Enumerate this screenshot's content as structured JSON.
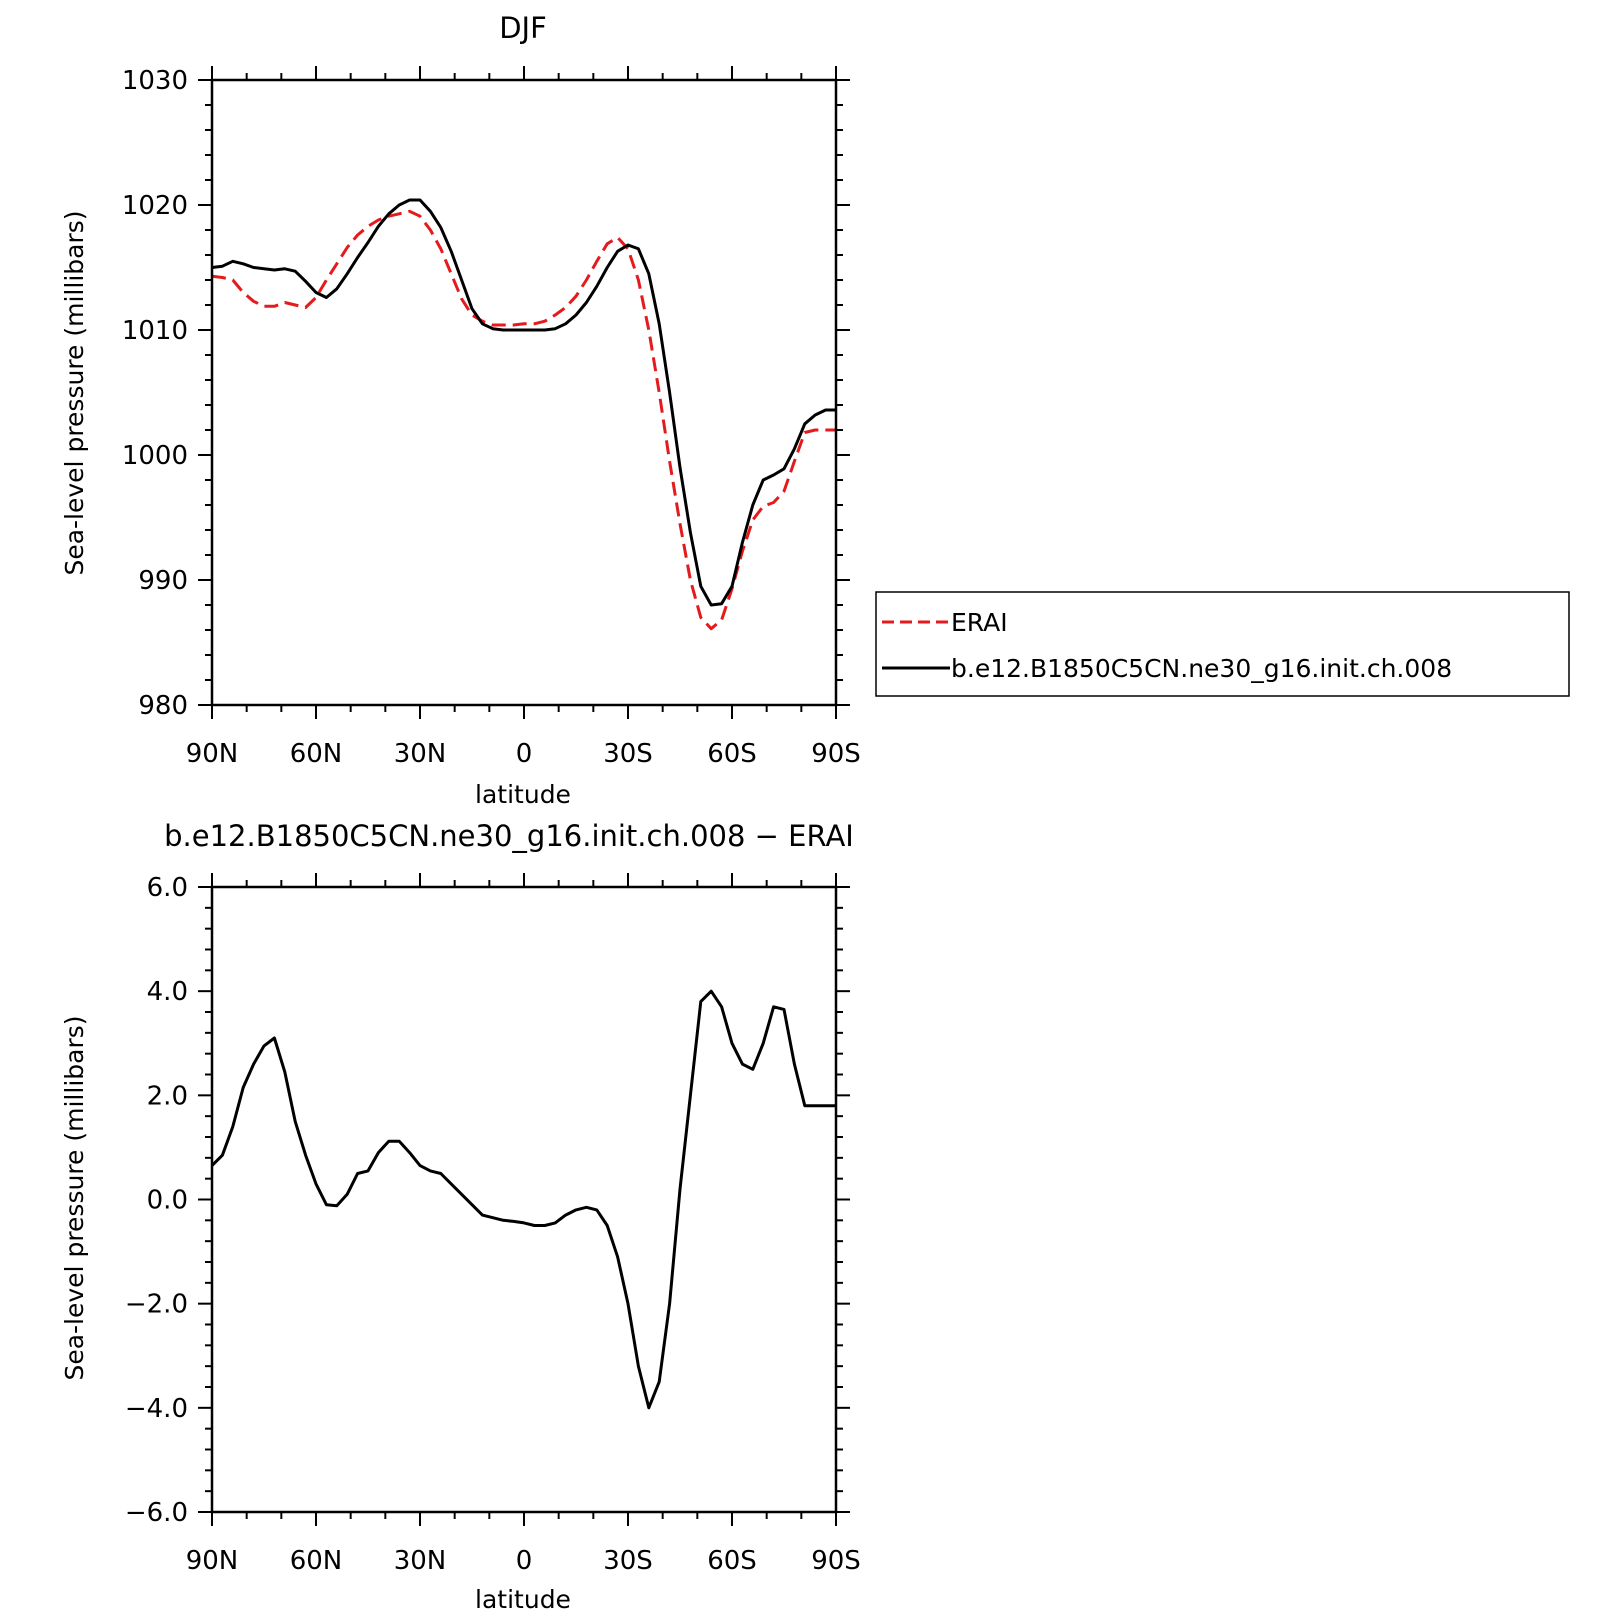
{
  "chart_data": [
    {
      "type": "line",
      "title": "DJF",
      "xlabel": "latitude",
      "ylabel": "Sea-level pressure (millibars)",
      "xlim": [
        90,
        -90
      ],
      "ylim": [
        980,
        1030
      ],
      "xticks": [
        90,
        60,
        30,
        0,
        -30,
        -60,
        -90
      ],
      "xtick_labels": [
        "90N",
        "60N",
        "30N",
        "0",
        "30S",
        "60S",
        "90S"
      ],
      "yticks": [
        980,
        990,
        1000,
        1010,
        1020,
        1030
      ],
      "ytick_labels": [
        "980",
        "990",
        "1000",
        "1010",
        "1020",
        "1030"
      ],
      "legend_position": "right",
      "series": [
        {
          "name": "ERAI",
          "color": "#e41a1c",
          "style": "dashed",
          "x": [
            90,
            87,
            84,
            81,
            78,
            75,
            72,
            69,
            66,
            63,
            60,
            57,
            54,
            51,
            48,
            45,
            42,
            39,
            36,
            33,
            30,
            27,
            24,
            21,
            18,
            15,
            12,
            9,
            6,
            3,
            0,
            -3,
            -6,
            -9,
            -12,
            -15,
            -18,
            -21,
            -24,
            -27,
            -30,
            -33,
            -36,
            -39,
            -42,
            -45,
            -48,
            -51,
            -54,
            -57,
            -60,
            -63,
            -66,
            -69,
            -72,
            -75,
            -78,
            -81,
            -84,
            -87,
            -90
          ],
          "y": [
            1014.3,
            1014.2,
            1014.0,
            1013.0,
            1012.3,
            1011.9,
            1011.9,
            1012.2,
            1012.0,
            1011.8,
            1012.6,
            1014.0,
            1015.3,
            1016.6,
            1017.6,
            1018.3,
            1018.8,
            1019.1,
            1019.3,
            1019.5,
            1019.1,
            1018.0,
            1016.5,
            1014.5,
            1012.5,
            1011.2,
            1010.7,
            1010.4,
            1010.4,
            1010.4,
            1010.5,
            1010.5,
            1010.7,
            1011.2,
            1011.8,
            1012.7,
            1014.0,
            1015.5,
            1016.9,
            1017.4,
            1016.5,
            1014.0,
            1010.0,
            1005.0,
            999.5,
            994.5,
            990.0,
            987.0,
            986.1,
            986.8,
            989.3,
            992.3,
            994.8,
            995.9,
            996.2,
            997.1,
            999.5,
            1001.8,
            1002.0,
            1002.0,
            1002.0
          ]
        },
        {
          "name": "b.e12.B1850C5CN.ne30_g16.init.ch.008",
          "color": "#000000",
          "style": "solid",
          "x": [
            90,
            87,
            84,
            81,
            78,
            75,
            72,
            69,
            66,
            63,
            60,
            57,
            54,
            51,
            48,
            45,
            42,
            39,
            36,
            33,
            30,
            27,
            24,
            21,
            18,
            15,
            12,
            9,
            6,
            3,
            0,
            -3,
            -6,
            -9,
            -12,
            -15,
            -18,
            -21,
            -24,
            -27,
            -30,
            -33,
            -36,
            -39,
            -42,
            -45,
            -48,
            -51,
            -54,
            -57,
            -60,
            -63,
            -66,
            -69,
            -72,
            -75,
            -78,
            -81,
            -84,
            -87,
            -90
          ],
          "y": [
            1015.0,
            1015.1,
            1015.5,
            1015.3,
            1015.0,
            1014.9,
            1014.8,
            1014.9,
            1014.7,
            1013.9,
            1013.0,
            1012.6,
            1013.3,
            1014.5,
            1015.8,
            1017.0,
            1018.3,
            1019.3,
            1020.0,
            1020.4,
            1020.4,
            1019.5,
            1018.2,
            1016.3,
            1014.0,
            1011.7,
            1010.5,
            1010.1,
            1010.0,
            1010.0,
            1010.0,
            1010.0,
            1010.0,
            1010.1,
            1010.5,
            1011.2,
            1012.2,
            1013.5,
            1015.0,
            1016.3,
            1016.8,
            1016.5,
            1014.5,
            1010.5,
            1005.0,
            999.0,
            993.8,
            989.5,
            988.0,
            988.1,
            989.5,
            993.0,
            996.0,
            998.0,
            998.4,
            998.9,
            1000.5,
            1002.5,
            1003.2,
            1003.6,
            1003.6
          ]
        }
      ]
    },
    {
      "type": "line",
      "title": "b.e12.B1850C5CN.ne30_g16.init.ch.008 − ERAI",
      "xlabel": "latitude",
      "ylabel": "Sea-level pressure (millibars)",
      "xlim": [
        90,
        -90
      ],
      "ylim": [
        -6.0,
        6.0
      ],
      "xticks": [
        90,
        60,
        30,
        0,
        -30,
        -60,
        -90
      ],
      "xtick_labels": [
        "90N",
        "60N",
        "30N",
        "0",
        "30S",
        "60S",
        "90S"
      ],
      "yticks": [
        -6,
        -4,
        -2,
        0,
        2,
        4,
        6
      ],
      "ytick_labels": [
        "−6.0",
        "−4.0",
        "−2.0",
        "0.0",
        "2.0",
        "4.0",
        "6.0"
      ],
      "series": [
        {
          "color": "#000000",
          "style": "solid",
          "x": [
            90,
            87,
            84,
            81,
            78,
            75,
            72,
            69,
            66,
            63,
            60,
            57,
            54,
            51,
            48,
            45,
            42,
            39,
            36,
            33,
            30,
            27,
            24,
            21,
            18,
            15,
            12,
            9,
            6,
            3,
            0,
            -3,
            -6,
            -9,
            -12,
            -15,
            -18,
            -21,
            -24,
            -27,
            -30,
            -33,
            -36,
            -39,
            -42,
            -45,
            -48,
            -51,
            -54,
            -57,
            -60,
            -63,
            -66,
            -69,
            -72,
            -75,
            -78,
            -81,
            -84,
            -87,
            -90
          ],
          "y": [
            0.65,
            0.85,
            1.4,
            2.15,
            2.6,
            2.95,
            3.1,
            2.45,
            1.5,
            0.85,
            0.3,
            -0.1,
            -0.12,
            0.1,
            0.5,
            0.55,
            0.9,
            1.12,
            1.12,
            0.9,
            0.65,
            0.55,
            0.5,
            0.3,
            0.1,
            -0.1,
            -0.3,
            -0.35,
            -0.4,
            -0.42,
            -0.45,
            -0.5,
            -0.5,
            -0.45,
            -0.3,
            -0.2,
            -0.15,
            -0.2,
            -0.5,
            -1.1,
            -2.0,
            -3.2,
            -4.0,
            -3.5,
            -2.0,
            0.2,
            2.0,
            3.8,
            4.0,
            3.7,
            3.0,
            2.6,
            2.5,
            3.0,
            3.7,
            3.65,
            2.6,
            1.8,
            1.8,
            1.8,
            1.8
          ]
        }
      ]
    }
  ]
}
